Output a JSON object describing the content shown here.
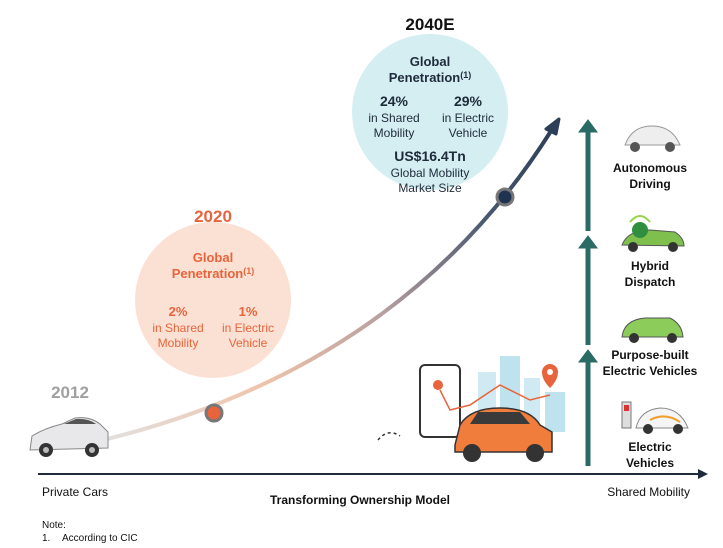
{
  "years": {
    "start": "2012",
    "mid": "2020",
    "end": "2040E"
  },
  "penetration_2020": {
    "title": [
      "Global",
      "Penetration"
    ],
    "footnote_ref": "(1)",
    "stats": [
      {
        "value": "2%",
        "label": [
          "in Shared",
          "Mobility"
        ]
      },
      {
        "value": "1%",
        "label": [
          "in Electric",
          "Vehicle"
        ]
      }
    ]
  },
  "penetration_2040": {
    "title": [
      "Global",
      "Penetration"
    ],
    "footnote_ref": "(1)",
    "stats": [
      {
        "value": "24%",
        "label": [
          "in Shared",
          "Mobility"
        ]
      },
      {
        "value": "29%",
        "label": [
          "in Electric",
          "Vehicle"
        ]
      }
    ],
    "market": {
      "value": "US$16.4Tn",
      "label": [
        "Global Mobility",
        "Market Size"
      ]
    }
  },
  "stages": [
    {
      "label": [
        "Autonomous",
        "Driving"
      ]
    },
    {
      "label": [
        "Hybrid",
        "Dispatch"
      ]
    },
    {
      "label": [
        "Purpose-built",
        "Electric Vehicles"
      ]
    },
    {
      "label": [
        "Electric",
        "Vehicles"
      ]
    }
  ],
  "axis": {
    "left": "Private Cars",
    "center": "Transforming Ownership Model",
    "right": "Shared Mobility"
  },
  "note": {
    "heading": "Note:",
    "items": [
      {
        "number": "1.",
        "text": "According to CIC"
      }
    ]
  }
}
